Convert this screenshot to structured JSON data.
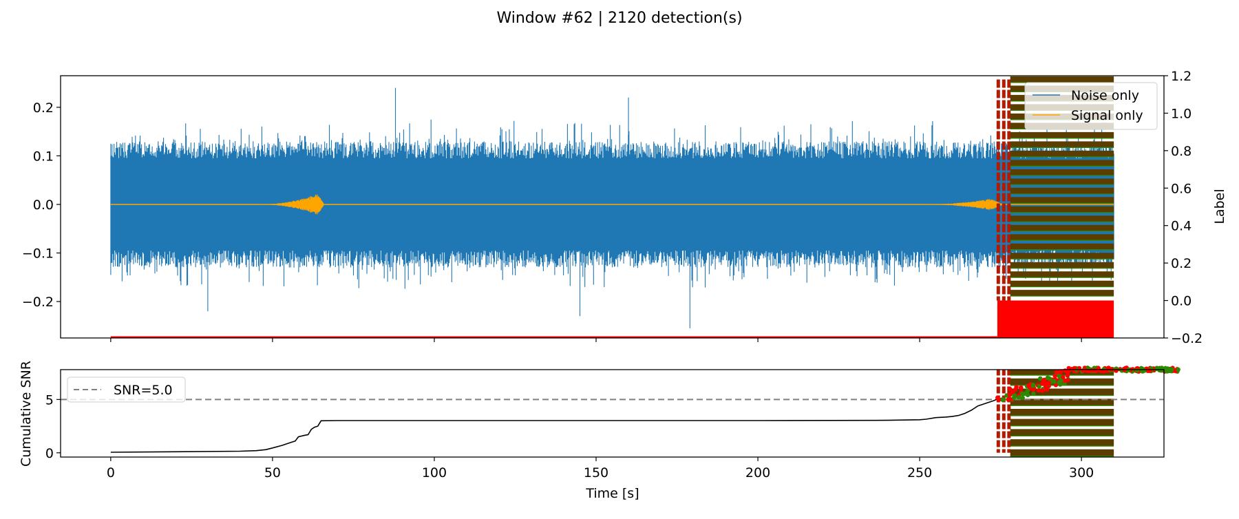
{
  "figure": {
    "title": "Window #62 | 2120 detection(s)"
  },
  "chart_data": [
    {
      "type": "line",
      "panel": "waveform",
      "xlim": [
        -15.5,
        325.5
      ],
      "ylim": [
        -0.275,
        0.265
      ],
      "y2lim": [
        -0.2,
        1.2
      ],
      "y2label": "Label",
      "yticks": [
        -0.2,
        -0.1,
        0.0,
        0.1,
        0.2
      ],
      "ytick_labels": [
        "−0.2",
        "−0.1",
        "0.0",
        "0.1",
        "0.2"
      ],
      "y2ticks": [
        -0.2,
        0.0,
        0.2,
        0.4,
        0.6,
        0.8,
        1.0,
        1.2
      ],
      "y2tick_labels": [
        "−0.2",
        "0.0",
        "0.2",
        "0.4",
        "0.6",
        "0.8",
        "1.0",
        "1.2"
      ],
      "legend_position": "upper right",
      "series": [
        {
          "name": "Noise only",
          "color": "#1f77b4",
          "x_range": [
            0,
            310
          ],
          "amplitude_envelope": 0.13,
          "peak_max": 0.24,
          "peak_min": -0.255
        },
        {
          "name": "Signal only",
          "color": "#ffa500",
          "bursts": [
            {
              "start": 45,
              "peak": 64,
              "end": 66,
              "peak_amplitude": 0.022
            },
            {
              "start": 250,
              "peak": 272,
              "end": 276,
              "peak_amplitude": 0.012
            }
          ]
        }
      ],
      "detections": {
        "count": 2120,
        "x_range": [
          274,
          310
        ],
        "label_color": "#ff0000",
        "marker_color": "#5c3d00",
        "label_low": 0.0,
        "label_high": 1.18
      }
    },
    {
      "type": "line",
      "panel": "cumulative-snr",
      "xlabel": "Time [s]",
      "ylabel": "Cumulative SNR",
      "xlim": [
        -15.5,
        325.5
      ],
      "ylim": [
        -0.4,
        7.8
      ],
      "xticks": [
        0,
        50,
        100,
        150,
        200,
        250,
        300
      ],
      "xtick_labels": [
        "0",
        "50",
        "100",
        "150",
        "200",
        "250",
        "300"
      ],
      "yticks": [
        0,
        5
      ],
      "ytick_labels": [
        "0",
        "5"
      ],
      "threshold": {
        "label": "SNR=5.0",
        "value": 5.0,
        "color": "#808080"
      },
      "legend_position": "upper left",
      "series": [
        {
          "name": "cumulative",
          "color": "#000000",
          "x": [
            0,
            20,
            40,
            45,
            48,
            50,
            53,
            56,
            57,
            58,
            60,
            61,
            62,
            63,
            64,
            65,
            70,
            100,
            150,
            200,
            240,
            250,
            252,
            255,
            258,
            260,
            262,
            264,
            266,
            268,
            270,
            271,
            272,
            273,
            274
          ],
          "y": [
            0.05,
            0.1,
            0.15,
            0.2,
            0.3,
            0.45,
            0.7,
            1.0,
            1.1,
            1.5,
            1.65,
            1.7,
            2.2,
            2.4,
            2.5,
            3.0,
            3.02,
            3.02,
            3.02,
            3.02,
            3.05,
            3.1,
            3.15,
            3.3,
            3.35,
            3.4,
            3.5,
            3.7,
            4.0,
            4.4,
            4.6,
            4.7,
            4.8,
            4.9,
            5.05
          ]
        }
      ],
      "detections": {
        "x_range": [
          274,
          310
        ],
        "bar_color": "#5c3d00",
        "edge_color": "#2d8a00",
        "scatter_color": "#ff0000",
        "scatter_x_range": [
          274,
          330
        ],
        "scatter_y_range": [
          5.0,
          8.0
        ]
      }
    }
  ]
}
